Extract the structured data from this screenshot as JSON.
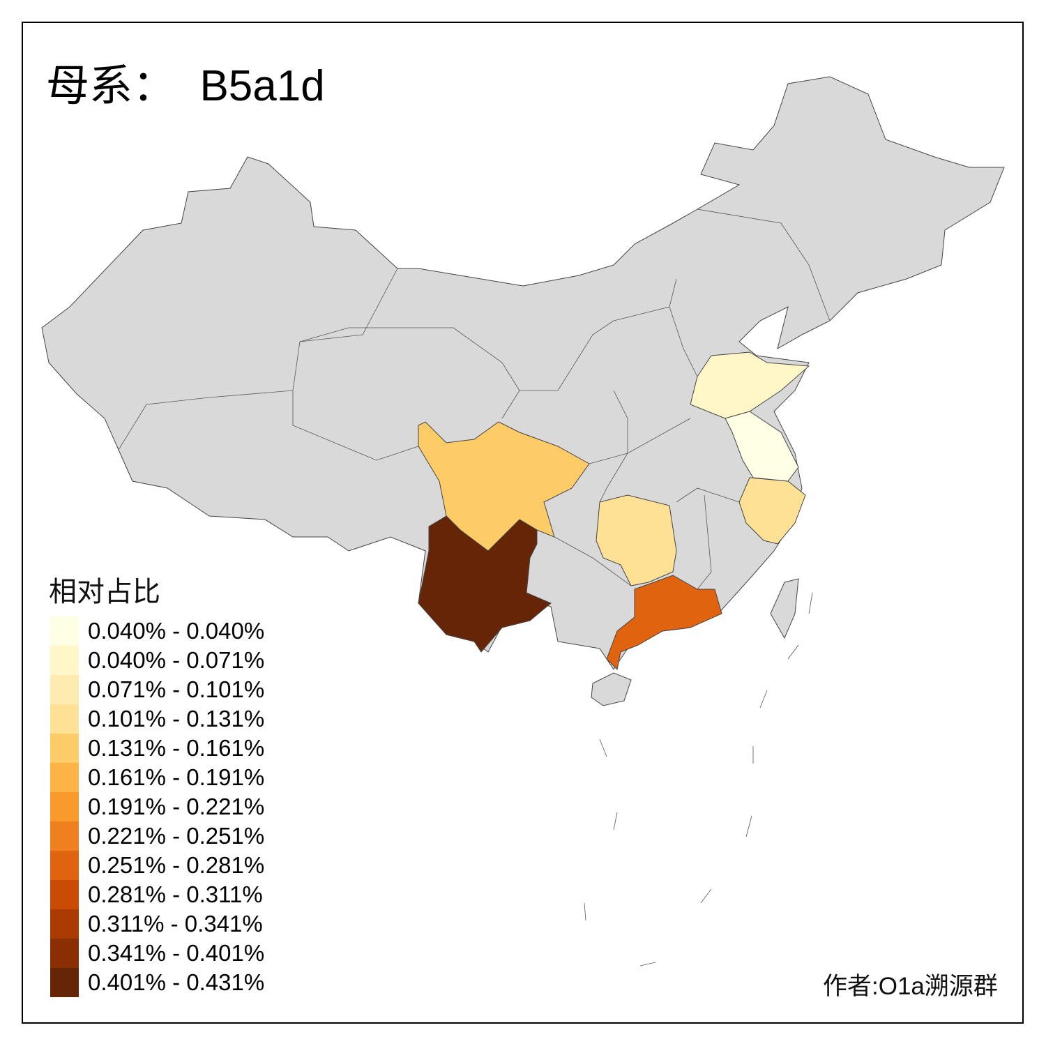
{
  "title": "母系：  B5a1d",
  "legend": {
    "title": "相对占比",
    "items": [
      {
        "label": "0.040% - 0.040%",
        "color": "#FFFFE5"
      },
      {
        "label": "0.040% - 0.071%",
        "color": "#FFF7C8"
      },
      {
        "label": "0.071% - 0.101%",
        "color": "#FEEBB0"
      },
      {
        "label": "0.101% - 0.131%",
        "color": "#FEE195"
      },
      {
        "label": "0.131% - 0.161%",
        "color": "#FECC66"
      },
      {
        "label": "0.161% - 0.191%",
        "color": "#FEB345"
      },
      {
        "label": "0.191% - 0.221%",
        "color": "#FB9A2C"
      },
      {
        "label": "0.221% - 0.251%",
        "color": "#F07F1E"
      },
      {
        "label": "0.251% - 0.281%",
        "color": "#E0640F"
      },
      {
        "label": "0.281% - 0.311%",
        "color": "#CA4B04"
      },
      {
        "label": "0.311% - 0.341%",
        "color": "#AB3B03"
      },
      {
        "label": "0.341% - 0.401%",
        "color": "#8A2E04"
      },
      {
        "label": "0.401% - 0.431%",
        "color": "#662506"
      }
    ]
  },
  "no_data_color": "#D9D9D9",
  "region_classes": {
    "yunnan": 12,
    "guangdong": 8,
    "sichuan": 4,
    "hunan": 3,
    "zhejiang": 3,
    "shandong": 1,
    "jiangsu": 0
  },
  "credit": "作者:O1a溯源群"
}
